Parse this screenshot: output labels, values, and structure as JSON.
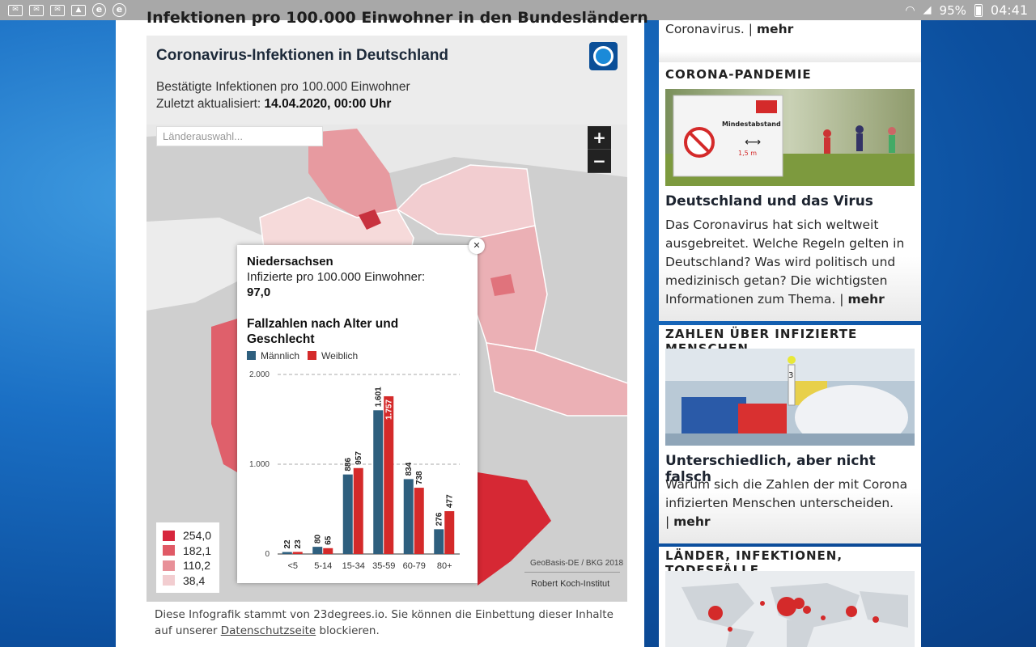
{
  "status_bar": {
    "left_icons": [
      "mail-icon",
      "mail-icon",
      "mail-icon",
      "image-icon",
      "e-icon",
      "e-icon"
    ],
    "battery": "95%",
    "time": "04:41"
  },
  "article": {
    "cut_heading": "Infektionen pro 100.000 Einwohner in den Bundesländern",
    "footer_text": "Diese Infografik stammt von 23degrees.io. Sie können die Einbettung dieser Inhalte auf unserer ",
    "footer_link": "Datenschutzseite",
    "footer_tail": " blockieren."
  },
  "infographic": {
    "title": "Coronavirus-Infektionen in Deutschland",
    "subtitle": "Bestätigte Infektionen pro 100.000 Einwohner",
    "updated_label": "Zuletzt aktualisiert: ",
    "updated_value": "14.04.2020, 00:00 Uhr",
    "search_placeholder": "Länderauswahl...",
    "zoom_in": "+",
    "zoom_out": "−",
    "legend": [
      {
        "value": "254,0",
        "color": "#d7263d"
      },
      {
        "value": "182,1",
        "color": "#e05a66"
      },
      {
        "value": "110,2",
        "color": "#e89098"
      },
      {
        "value": "38,4",
        "color": "#f2cdd0"
      }
    ],
    "credit_geo": "GeoBasis-DE / BKG 2018",
    "credit_source": "Robert Koch-Institut"
  },
  "tooltip": {
    "region": "Niedersachsen",
    "label": "Infizierte pro 100.000 Einwohner:",
    "value": "97,0",
    "chart_title": "Fallzahlen nach Alter und Geschlecht",
    "close": "✕"
  },
  "chart_data": {
    "type": "bar",
    "title": "Fallzahlen nach Alter und Geschlecht",
    "categories": [
      "<5",
      "5-14",
      "15-34",
      "35-59",
      "60-79",
      "80+"
    ],
    "series": [
      {
        "name": "Männlich",
        "color": "#2e5f7e",
        "values": [
          22,
          80,
          886,
          1601,
          834,
          276
        ]
      },
      {
        "name": "Weiblich",
        "color": "#d42a2a",
        "values": [
          23,
          65,
          957,
          1757,
          738,
          477
        ]
      }
    ],
    "data_labels": {
      "Männlich": [
        "22",
        "80",
        "886",
        "1.601",
        "834",
        "276"
      ],
      "Weiblich": [
        "23",
        "65",
        "957",
        "1.757",
        "738",
        "477"
      ]
    },
    "y_ticks": [
      0,
      1000,
      2000
    ],
    "y_tick_labels": [
      "0",
      "1.000",
      "2.000"
    ],
    "ylim": [
      0,
      2000
    ],
    "grid": true,
    "legend": "top-left"
  },
  "sidebar": {
    "top_text": "Coronavirus. | ",
    "top_more": "mehr",
    "sections": [
      {
        "heading": "CORONA-PANDEMIE",
        "title": "Deutschland und das Virus",
        "text": "Das Coronavirus hat sich weltweit ausgebreitet. Welche Regeln gelten in Deutschland? Was wird politisch und medizinisch getan? Die wichtigsten Informationen zum Thema. | ",
        "more": "mehr",
        "sign_text": "Mindestabstand",
        "sign_distance": "1,5 m"
      },
      {
        "heading": "ZAHLEN ÜBER INFIZIERTE MENSCHEN",
        "title": "Unterschiedlich, aber nicht falsch",
        "text": "Warum sich die Zahlen der mit Corona infizierten Menschen unterscheiden.",
        "more_prefix": "| ",
        "more": "mehr",
        "tube_label": "3"
      },
      {
        "heading": "LÄNDER, INFEKTIONEN, TODESFÄLLE"
      }
    ]
  }
}
